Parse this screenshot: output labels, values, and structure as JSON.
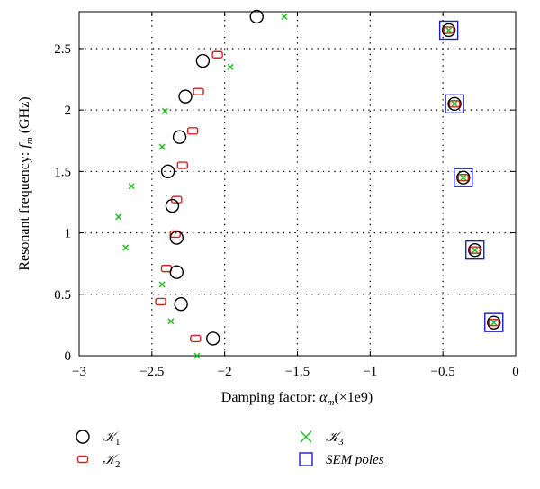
{
  "chart_data": {
    "type": "scatter",
    "xlabel_text": "Damping factor: ",
    "xlabel_symbol": "α",
    "xlabel_sub": "m",
    "xlabel_unit": "(×1e9)",
    "ylabel_text": "Resonant frequency: ",
    "ylabel_symbol": "f",
    "ylabel_sub": "m",
    "ylabel_unit": " (GHz)",
    "xlim": [
      -3,
      0
    ],
    "ylim": [
      0,
      2.8
    ],
    "xticks": [
      -3,
      -2.5,
      -2,
      -1.5,
      -1,
      -0.5,
      0
    ],
    "xtick_labels": [
      "−3",
      "−2.5",
      "−2",
      "−1.5",
      "−1",
      "−0.5",
      "0"
    ],
    "yticks": [
      0,
      0.5,
      1,
      1.5,
      2,
      2.5
    ],
    "ytick_labels": [
      "0",
      "0.5",
      "1",
      "1.5",
      "2",
      "2.5"
    ],
    "grid": "dotted",
    "legend_placement": "below",
    "series": [
      {
        "name": "𝒦",
        "sub": "1",
        "marker": "circle",
        "color": "#000000",
        "points": [
          [
            -2.08,
            0.14
          ],
          [
            -2.3,
            0.42
          ],
          [
            -2.33,
            0.68
          ],
          [
            -2.33,
            0.96
          ],
          [
            -2.36,
            1.22
          ],
          [
            -2.39,
            1.5
          ],
          [
            -2.31,
            1.78
          ],
          [
            -2.27,
            2.11
          ],
          [
            -2.15,
            2.4
          ],
          [
            -1.78,
            2.76
          ],
          [
            -0.46,
            2.65
          ],
          [
            -0.42,
            2.05
          ],
          [
            -0.36,
            1.45
          ],
          [
            -0.28,
            0.86
          ],
          [
            -0.15,
            0.27
          ]
        ]
      },
      {
        "name": "𝒦",
        "sub": "2",
        "marker": "roundrect",
        "color": "#d4201e",
        "points": [
          [
            -2.2,
            0.14
          ],
          [
            -2.44,
            0.44
          ],
          [
            -2.4,
            0.71
          ],
          [
            -2.34,
            0.99
          ],
          [
            -2.33,
            1.27
          ],
          [
            -2.29,
            1.55
          ],
          [
            -2.22,
            1.83
          ],
          [
            -2.18,
            2.15
          ],
          [
            -2.05,
            2.45
          ],
          [
            -0.46,
            2.65
          ],
          [
            -0.42,
            2.05
          ],
          [
            -0.36,
            1.45
          ],
          [
            -0.28,
            0.86
          ],
          [
            -0.15,
            0.27
          ]
        ]
      },
      {
        "name": "𝒦",
        "sub": "3",
        "marker": "x",
        "color": "#22c022",
        "points": [
          [
            -2.19,
            0.0
          ],
          [
            -2.37,
            0.28
          ],
          [
            -2.43,
            0.58
          ],
          [
            -2.68,
            0.88
          ],
          [
            -2.73,
            1.13
          ],
          [
            -2.64,
            1.38
          ],
          [
            -2.43,
            1.7
          ],
          [
            -2.41,
            1.99
          ],
          [
            -1.96,
            2.35
          ],
          [
            -1.59,
            2.76
          ],
          [
            -0.46,
            2.65
          ],
          [
            -0.42,
            2.05
          ],
          [
            -0.36,
            1.45
          ],
          [
            -0.28,
            0.86
          ],
          [
            -0.15,
            0.27
          ]
        ]
      },
      {
        "name": "SEM poles",
        "marker": "square",
        "color": "#1e1ebe",
        "points": [
          [
            -0.46,
            2.65
          ],
          [
            -0.42,
            2.05
          ],
          [
            -0.36,
            1.45
          ],
          [
            -0.28,
            0.86
          ],
          [
            -0.15,
            0.27
          ]
        ]
      }
    ]
  }
}
